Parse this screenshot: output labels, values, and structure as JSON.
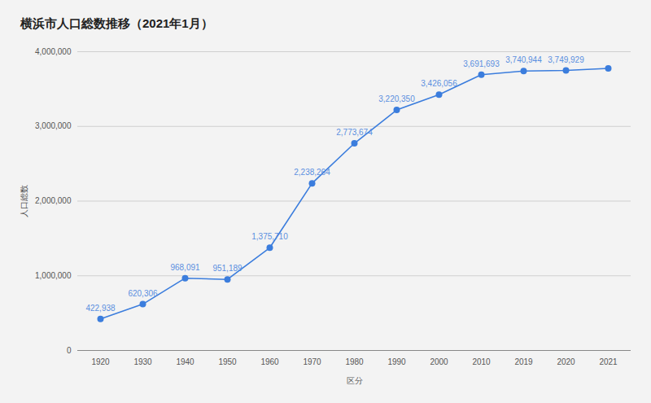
{
  "chart_data": {
    "type": "line",
    "title": "横浜市人口総数推移（2021年1月）",
    "xlabel": "区分",
    "ylabel": "人口総数",
    "categories": [
      "1920",
      "1930",
      "1940",
      "1950",
      "1960",
      "1970",
      "1980",
      "1990",
      "2000",
      "2010",
      "2019",
      "2020",
      "2021"
    ],
    "values": [
      422938,
      620306,
      968091,
      951189,
      1375710,
      2238264,
      2773674,
      3220350,
      3426056,
      3691693,
      3740944,
      3749929,
      3777000
    ],
    "value_labels": [
      "422,938",
      "620,306",
      "968,091",
      "951,189",
      "1,375,710",
      "2,238,264",
      "2,773,674",
      "3,220,350",
      "3,426,056",
      "3,691,693",
      "3,740,944",
      "3,749,929",
      null
    ],
    "data_labels": true,
    "color": "#3b7ddd",
    "marker": "circle",
    "ylim": [
      0,
      4000000
    ],
    "yticks": [
      0,
      {
        "value": 1000000,
        "label": "1,000,000"
      },
      {
        "value": 2000000,
        "label": "2,000,000"
      },
      {
        "value": 3000000,
        "label": "3,000,000"
      },
      {
        "value": 4000000,
        "label": "4,000,000"
      }
    ],
    "grid": true
  }
}
